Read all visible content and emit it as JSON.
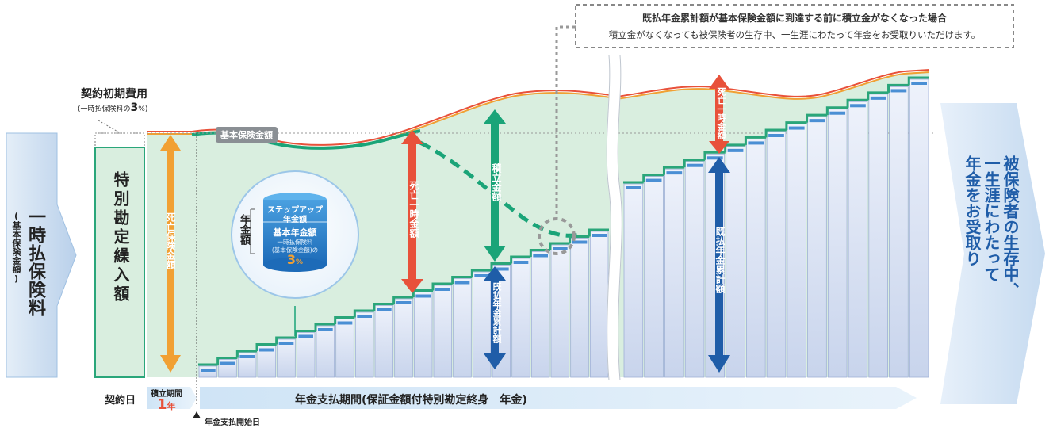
{
  "callout": {
    "title": "既払年金累計額が基本保険金額に到達する前に積立金がなくなった場合",
    "body": "積立金がなくなっても被保険者の生存中、一生涯にわたって年金をお受取りいただけます。"
  },
  "lump_sum": {
    "label": "一時払保険料",
    "sub": "(基本保険金額)"
  },
  "initial_cost": {
    "label": "契約初期費用",
    "sub_prefix": "(一時払保険料の",
    "pct": "3",
    "pct_unit": "%)"
  },
  "special_account": "特別勘定繰入額",
  "death_benefit_orange": "死亡保険金額",
  "base_insured_amount": "基本保険金額",
  "death_benefit_red": "死亡一時金額",
  "reserve": "積立金額",
  "paid_cumulative": "既払年金累計額",
  "annuity_badge": {
    "side_label": "年金額",
    "stepup_line1": "ステップアップ",
    "stepup_line2": "年金額",
    "base_title": "基本年金額",
    "base_sub1": "一時払保険料",
    "base_sub2": "(基本保険金額)の",
    "pct": "3",
    "pct_unit": "%"
  },
  "right_arrow_lines": [
    "被保険者の生存中、",
    "一生涯にわたって",
    "年金をお受取り"
  ],
  "timeline": {
    "contract_date": "契約日",
    "accum_label": "積立期間",
    "accum_value": "1",
    "accum_unit": "年",
    "payment_period": "年金支払期間(保証金額付特別勘定終身　年金)",
    "payment_start": "年金支払開始日"
  },
  "colors": {
    "green_fill": "#d9eedf",
    "green_step": "#2aa67a",
    "orange": "#f1a033",
    "red": "#e8513a",
    "teal": "#1aa478",
    "navy": "#1f5da8",
    "arrow_blue": "#c6dcf0"
  },
  "step_counts": {
    "before_break": 21,
    "after_break": 15
  }
}
